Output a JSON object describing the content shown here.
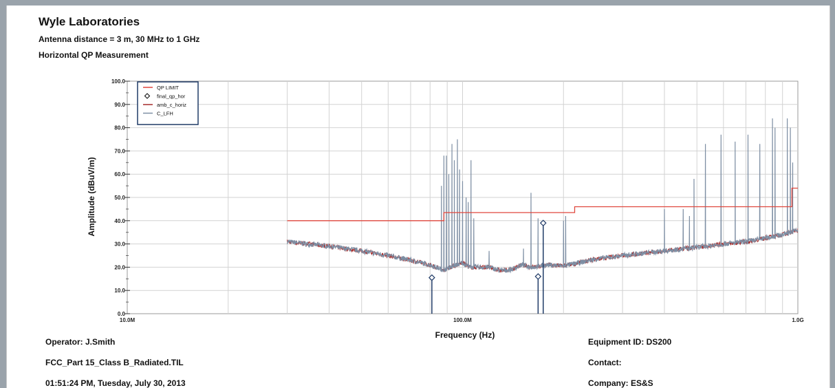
{
  "header": {
    "lab": "Wyle Laboratories",
    "subtitle": "Antenna distance = 3 m, 30 MHz to 1 GHz",
    "measurement": "Horizontal QP Measurement"
  },
  "footer": {
    "operator": "Operator: J.Smith",
    "file": "FCC_Part 15_Class B_Radiated.TIL",
    "datetime": "01:51:24 PM, Tuesday, July 30, 2013",
    "equipment": "Equipment ID: DS200",
    "contact": "Contact:",
    "company": "Company: ES&S"
  },
  "chart_data": {
    "type": "line",
    "xlabel": "Frequency (Hz)",
    "ylabel": "Amplitude (dBuV/m)",
    "xscale": "log",
    "xlim_mhz": [
      10,
      1000
    ],
    "ylim": [
      0,
      100
    ],
    "x_tick_labels": [
      {
        "mhz": 10,
        "label": "10.0M"
      },
      {
        "mhz": 100,
        "label": "100.0M"
      },
      {
        "mhz": 1000,
        "label": "1.0G"
      }
    ],
    "y_tick_labels": [
      "0.0",
      "10.0",
      "20.0",
      "30.0",
      "40.0",
      "50.0",
      "60.0",
      "70.0",
      "80.0",
      "90.0",
      "100.0"
    ],
    "grid": true,
    "legend_position": "top-left",
    "legend": [
      {
        "name": "QP LIMIT",
        "color": "#e0463c",
        "kind": "line"
      },
      {
        "name": "final_qp_hor",
        "color": "#1f3a66",
        "kind": "diamond"
      },
      {
        "name": "amb_c_horiz",
        "color": "#a52a2a",
        "kind": "line"
      },
      {
        "name": "C_LFH",
        "color": "#7d8ea3",
        "kind": "line"
      }
    ],
    "series": [
      {
        "name": "QP LIMIT",
        "color": "#e0463c",
        "x_mhz": [
          30,
          88,
          88,
          216,
          216,
          960,
          960,
          1000
        ],
        "y": [
          40,
          40,
          43.5,
          43.5,
          46,
          46,
          54,
          54
        ]
      },
      {
        "name": "final_qp_hor",
        "color": "#1f3a66",
        "points": [
          {
            "x_mhz": 81,
            "y": 15.5
          },
          {
            "x_mhz": 168,
            "y": 16
          },
          {
            "x_mhz": 174,
            "y": 39
          }
        ]
      },
      {
        "name": "C_LFH",
        "color": "#7d8ea3",
        "baseline": {
          "x_mhz": [
            30,
            40,
            50,
            60,
            70,
            80,
            85,
            88,
            100,
            105,
            110,
            120,
            130,
            140,
            150,
            160,
            180,
            200,
            250,
            300,
            400,
            500,
            600,
            700,
            800,
            900,
            1000
          ],
          "y": [
            31,
            29,
            27,
            25,
            23,
            21,
            19.5,
            19,
            22,
            20,
            20,
            20,
            18.5,
            19,
            21,
            20,
            21,
            20.5,
            23.5,
            25,
            27,
            28.5,
            30,
            31,
            32.5,
            34,
            36
          ]
        },
        "peaks": [
          {
            "x_mhz": 86.5,
            "y": 55
          },
          {
            "x_mhz": 88,
            "y": 68
          },
          {
            "x_mhz": 89.5,
            "y": 68
          },
          {
            "x_mhz": 91,
            "y": 60
          },
          {
            "x_mhz": 93,
            "y": 73
          },
          {
            "x_mhz": 94.5,
            "y": 66
          },
          {
            "x_mhz": 96.5,
            "y": 75
          },
          {
            "x_mhz": 98,
            "y": 62
          },
          {
            "x_mhz": 100,
            "y": 57
          },
          {
            "x_mhz": 102.5,
            "y": 50
          },
          {
            "x_mhz": 104,
            "y": 48
          },
          {
            "x_mhz": 106,
            "y": 66
          },
          {
            "x_mhz": 108,
            "y": 41
          },
          {
            "x_mhz": 120,
            "y": 27
          },
          {
            "x_mhz": 152,
            "y": 28
          },
          {
            "x_mhz": 160,
            "y": 52
          },
          {
            "x_mhz": 168,
            "y": 41
          },
          {
            "x_mhz": 200,
            "y": 40
          },
          {
            "x_mhz": 203,
            "y": 42
          },
          {
            "x_mhz": 400,
            "y": 45
          },
          {
            "x_mhz": 455,
            "y": 45
          },
          {
            "x_mhz": 475,
            "y": 42
          },
          {
            "x_mhz": 490,
            "y": 58
          },
          {
            "x_mhz": 530,
            "y": 73
          },
          {
            "x_mhz": 590,
            "y": 77
          },
          {
            "x_mhz": 650,
            "y": 74
          },
          {
            "x_mhz": 710,
            "y": 77
          },
          {
            "x_mhz": 770,
            "y": 73
          },
          {
            "x_mhz": 840,
            "y": 84
          },
          {
            "x_mhz": 855,
            "y": 80
          },
          {
            "x_mhz": 930,
            "y": 84
          },
          {
            "x_mhz": 950,
            "y": 80
          },
          {
            "x_mhz": 965,
            "y": 65
          }
        ]
      },
      {
        "name": "amb_c_horiz",
        "color": "#a52a2a",
        "follows": "C_LFH baseline"
      }
    ]
  }
}
